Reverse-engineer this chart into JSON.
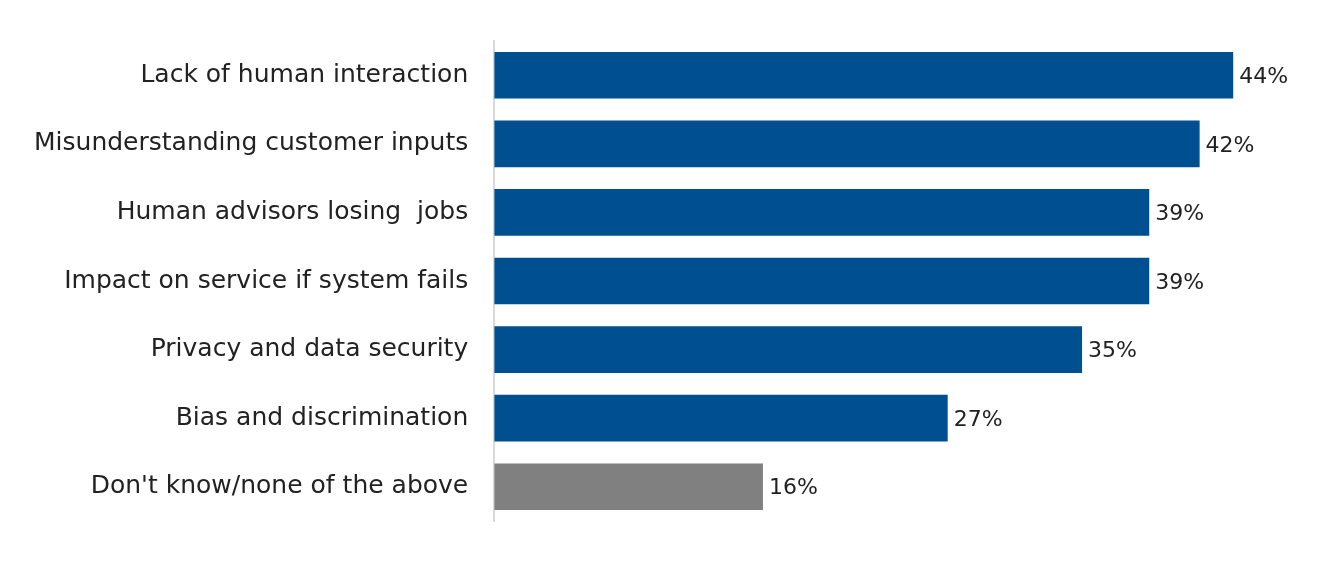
{
  "chart_data": {
    "type": "bar",
    "orientation": "horizontal",
    "categories": [
      "Lack of human interaction",
      "Misunderstanding customer inputs",
      "Human advisors losing  jobs",
      "Impact on service if system fails",
      "Privacy and data security",
      "Bias and discrimination",
      "Don't know/none of the above"
    ],
    "values": [
      44,
      42,
      39,
      39,
      35,
      27,
      16
    ],
    "colors": [
      "#004f91",
      "#004f91",
      "#004f91",
      "#004f91",
      "#004f91",
      "#004f91",
      "#808080"
    ],
    "value_labels": [
      "44%",
      "42%",
      "39%",
      "39%",
      "35%",
      "27%",
      "16%"
    ],
    "tick_labels": "y"
  }
}
